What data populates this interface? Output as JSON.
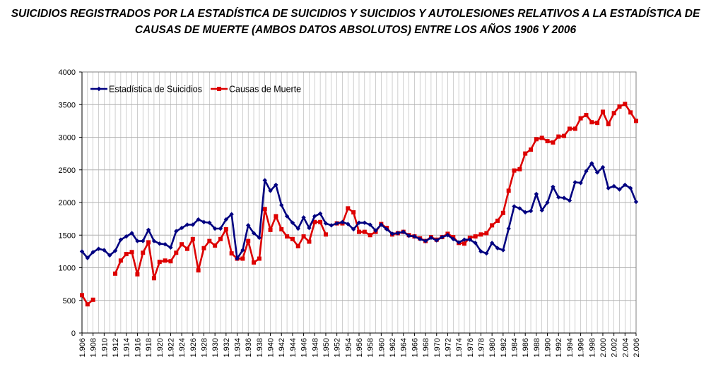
{
  "title_line1": "SUICIDIOS REGISTRADOS POR LA ESTADÍSTICA DE SUICIDIOS Y SUICIDIOS Y AUTOLESIONES RELATIVOS A LA ESTADÍSTICA DE",
  "title_line2": "CAUSAS DE MUERTE (AMBOS DATOS ABSOLUTOS)  ENTRE LOS AÑOS 1906 Y 2006",
  "colors": {
    "blue": "#000080",
    "red": "#dd0000",
    "grid": "#b0b0b0"
  },
  "chart_data": {
    "type": "line",
    "title": "SUICIDIOS REGISTRADOS POR LA ESTADÍSTICA DE SUICIDIOS Y SUICIDIOS Y AUTOLESIONES RELATIVOS A LA ESTADÍSTICA DE CAUSAS DE MUERTE (AMBOS DATOS ABSOLUTOS)  ENTRE LOS AÑOS 1906 Y 2006",
    "xlabel": "",
    "ylabel": "",
    "ylim": [
      0,
      4000
    ],
    "yticks": [
      0,
      500,
      1000,
      1500,
      2000,
      2500,
      3000,
      3500,
      4000
    ],
    "xticks": [
      "1.906",
      "1.908",
      "1.910",
      "1.912",
      "1.914",
      "1.916",
      "1.918",
      "1.920",
      "1.922",
      "1.924",
      "1.926",
      "1.928",
      "1.930",
      "1.932",
      "1.934",
      "1.936",
      "1.938",
      "1.940",
      "1.942",
      "1.944",
      "1.946",
      "1.948",
      "1.950",
      "1.952",
      "1.954",
      "1.956",
      "1.958",
      "1.960",
      "1.962",
      "1.964",
      "1.966",
      "1.968",
      "1.970",
      "1.972",
      "1.974",
      "1.976",
      "1.978",
      "1.980",
      "1.982",
      "1.984",
      "1.986",
      "1.988",
      "1.990",
      "1.992",
      "1.994",
      "1.996",
      "1.998",
      "2.000",
      "2.002",
      "2.004",
      "2.006"
    ],
    "xrange": [
      1906,
      2006
    ],
    "grid": true,
    "legend_position": "top-left",
    "series": [
      {
        "name": "Estadística de Suicidios",
        "color": "#000080",
        "marker": "diamond",
        "x": [
          1906,
          1907,
          1908,
          1909,
          1910,
          1911,
          1912,
          1913,
          1914,
          1915,
          1916,
          1917,
          1918,
          1919,
          1920,
          1921,
          1922,
          1923,
          1924,
          1925,
          1926,
          1927,
          1928,
          1929,
          1930,
          1931,
          1932,
          1933,
          1934,
          1935,
          1936,
          1937,
          1938,
          1939,
          1940,
          1941,
          1942,
          1943,
          1944,
          1945,
          1946,
          1947,
          1948,
          1949,
          1950,
          1951,
          1952,
          1953,
          1954,
          1955,
          1956,
          1957,
          1958,
          1959,
          1960,
          1961,
          1962,
          1963,
          1964,
          1965,
          1966,
          1967,
          1968,
          1969,
          1970,
          1971,
          1972,
          1973,
          1974,
          1975,
          1976,
          1977,
          1978,
          1979,
          1980,
          1981,
          1982,
          1983,
          1984,
          1985,
          1986,
          1987,
          1988,
          1989,
          1990,
          1991,
          1992,
          1993,
          1994,
          1995,
          1996,
          1997,
          1998,
          1999,
          2000,
          2001,
          2002,
          2003,
          2004,
          2005,
          2006
        ],
        "values": [
          1250,
          1150,
          1240,
          1290,
          1270,
          1190,
          1260,
          1430,
          1480,
          1530,
          1410,
          1410,
          1580,
          1410,
          1370,
          1360,
          1310,
          1560,
          1610,
          1660,
          1660,
          1740,
          1700,
          1690,
          1600,
          1600,
          1740,
          1820,
          1140,
          1270,
          1650,
          1530,
          1460,
          2340,
          2180,
          2270,
          1960,
          1790,
          1690,
          1600,
          1770,
          1610,
          1790,
          1830,
          1680,
          1650,
          1680,
          1700,
          1670,
          1590,
          1690,
          1690,
          1660,
          1570,
          1660,
          1590,
          1520,
          1530,
          1550,
          1490,
          1480,
          1440,
          1410,
          1460,
          1420,
          1470,
          1500,
          1440,
          1390,
          1430,
          1430,
          1380,
          1250,
          1220,
          1380,
          1300,
          1270,
          1600,
          1940,
          1910,
          1850,
          1870,
          2130,
          1880,
          2000,
          2240,
          2080,
          2070,
          2030,
          2310,
          2300,
          2480,
          2600,
          2460,
          2540,
          2220,
          2250,
          2200,
          2270,
          2220,
          2010
        ]
      },
      {
        "name": "Causas de Muerte",
        "color": "#dd0000",
        "marker": "square",
        "segments": [
          {
            "x": [
              1906,
              1907,
              1908
            ],
            "values": [
              580,
              440,
              510
            ]
          },
          {
            "x": [
              1912,
              1913,
              1914,
              1915,
              1916,
              1917,
              1918,
              1919,
              1920,
              1921,
              1922,
              1923,
              1924,
              1925,
              1926,
              1927,
              1928,
              1929,
              1930,
              1931,
              1932,
              1933,
              1934,
              1935,
              1936,
              1937,
              1938,
              1939,
              1940,
              1941,
              1942,
              1943,
              1944,
              1945,
              1946,
              1947,
              1948,
              1949,
              1950
            ],
            "values": [
              910,
              1110,
              1210,
              1240,
              900,
              1230,
              1390,
              840,
              1090,
              1110,
              1100,
              1230,
              1360,
              1290,
              1440,
              960,
              1300,
              1410,
              1340,
              1440,
              1590,
              1220,
              1140,
              1140,
              1410,
              1080,
              1140,
              1900,
              1580,
              1790,
              1590,
              1480,
              1440,
              1330,
              1480,
              1400,
              1700,
              1700,
              1510
            ]
          },
          {
            "x": [
              1952,
              1953,
              1954,
              1955,
              1956,
              1957,
              1958,
              1959,
              1960,
              1961,
              1962,
              1963,
              1964,
              1965,
              1966,
              1967,
              1968,
              1969,
              1970,
              1971,
              1972,
              1973,
              1974,
              1975,
              1976,
              1977,
              1978,
              1979,
              1980,
              1981,
              1982,
              1983,
              1984,
              1985,
              1986,
              1987,
              1988,
              1989,
              1990,
              1991,
              1992,
              1993,
              1994,
              1995,
              1996,
              1997,
              1998,
              1999,
              2000,
              2001,
              2002,
              2003,
              2004,
              2005,
              2006
            ],
            "values": [
              1680,
              1680,
              1910,
              1850,
              1550,
              1550,
              1500,
              1550,
              1670,
              1610,
              1510,
              1530,
              1550,
              1500,
              1480,
              1450,
              1410,
              1470,
              1430,
              1470,
              1520,
              1470,
              1380,
              1370,
              1460,
              1480,
              1510,
              1530,
              1650,
              1720,
              1840,
              2180,
              2490,
              2510,
              2750,
              2810,
              2970,
              2990,
              2940,
              2920,
              3010,
              3020,
              3130,
              3130,
              3290,
              3340,
              3230,
              3220,
              3390,
              3200,
              3370,
              3470,
              3510,
              3380,
              3250
            ]
          }
        ]
      }
    ]
  }
}
